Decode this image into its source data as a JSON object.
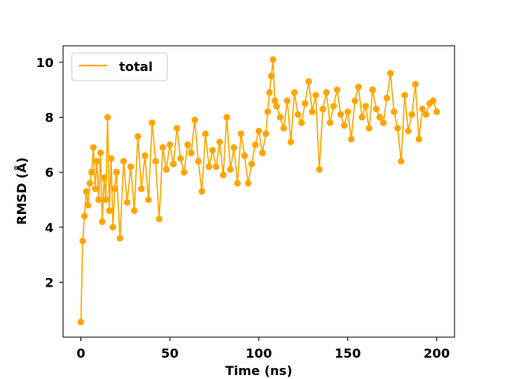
{
  "chart_data": {
    "type": "line",
    "xlabel": "Time (ns)",
    "ylabel": "RMSD (Å)",
    "xlim": [
      -10,
      210
    ],
    "ylim": [
      0,
      10.6
    ],
    "xticks": [
      0,
      50,
      100,
      150,
      200
    ],
    "yticks": [
      2,
      4,
      6,
      8,
      10
    ],
    "xtick_labels": [
      "0",
      "50",
      "100",
      "150",
      "200"
    ],
    "ytick_labels": [
      "2",
      "4",
      "6",
      "8",
      "10"
    ],
    "grid": false,
    "legend": "upper-left",
    "markers": "circle",
    "series": [
      {
        "name": "total",
        "color": "#FFA500",
        "x": [
          0,
          1,
          2,
          3,
          4,
          5,
          6,
          7,
          8,
          9,
          10,
          11,
          12,
          13,
          14,
          15,
          16,
          17,
          18,
          19,
          20,
          22,
          24,
          26,
          28,
          30,
          32,
          34,
          36,
          38,
          40,
          42,
          44,
          46,
          48,
          50,
          52,
          54,
          56,
          58,
          60,
          62,
          64,
          66,
          68,
          70,
          72,
          74,
          76,
          78,
          80,
          82,
          84,
          86,
          88,
          90,
          92,
          94,
          96,
          98,
          100,
          102,
          104,
          105,
          106,
          107,
          108,
          109,
          110,
          112,
          114,
          116,
          118,
          120,
          122,
          124,
          126,
          128,
          130,
          132,
          134,
          136,
          138,
          140,
          142,
          144,
          146,
          148,
          150,
          152,
          154,
          156,
          158,
          160,
          162,
          164,
          166,
          168,
          170,
          172,
          174,
          176,
          178,
          180,
          182,
          184,
          186,
          188,
          190,
          192,
          194,
          196,
          198,
          200
        ],
        "values": [
          0.55,
          3.5,
          4.4,
          5.3,
          4.8,
          5.6,
          6.0,
          6.9,
          5.4,
          6.4,
          5.0,
          6.7,
          4.2,
          5.8,
          5.0,
          8.0,
          4.6,
          6.5,
          4.0,
          5.4,
          6.0,
          3.6,
          6.4,
          4.9,
          6.2,
          4.6,
          7.3,
          5.4,
          6.6,
          5.0,
          7.8,
          6.4,
          4.3,
          6.9,
          6.1,
          7.0,
          6.3,
          7.6,
          6.5,
          6.0,
          7.0,
          6.7,
          7.9,
          6.4,
          5.3,
          7.4,
          6.2,
          6.8,
          6.2,
          7.1,
          5.9,
          8.0,
          6.1,
          6.9,
          5.6,
          7.4,
          6.6,
          5.6,
          6.3,
          7.0,
          7.5,
          6.7,
          7.4,
          8.2,
          8.9,
          9.5,
          10.1,
          8.6,
          8.4,
          8.0,
          7.6,
          8.6,
          7.1,
          8.9,
          8.1,
          7.8,
          8.5,
          9.3,
          8.2,
          8.8,
          6.1,
          8.3,
          8.9,
          7.8,
          8.4,
          9.0,
          8.1,
          7.7,
          8.2,
          7.2,
          8.6,
          9.1,
          8.0,
          8.4,
          7.6,
          9.0,
          8.3,
          8.0,
          7.8,
          8.7,
          9.6,
          8.2,
          7.6,
          6.4,
          8.8,
          7.5,
          8.1,
          9.2,
          7.2,
          8.3,
          8.1,
          8.5,
          8.6,
          8.2
        ]
      }
    ]
  }
}
